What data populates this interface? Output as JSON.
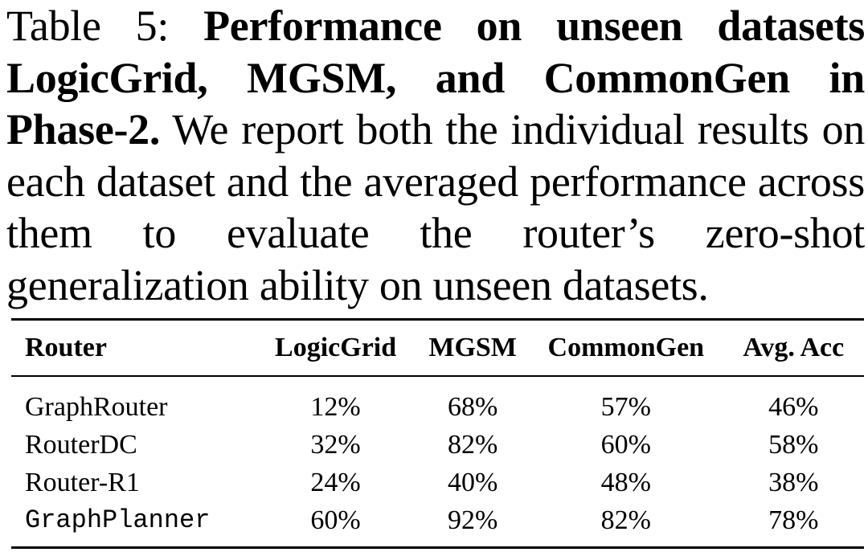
{
  "caption": {
    "label": "Table 5:",
    "title": "Performance on unseen datasets LogicGrid, MGSM, and CommonGen in Phase-2.",
    "text": "We report both the individual results on each dataset and the averaged performance across them to evaluate the router’s zero-shot generalization ability on unseen datasets."
  },
  "table": {
    "headers": [
      "Router",
      "LogicGrid",
      "MGSM",
      "CommonGen",
      "Avg. Acc"
    ],
    "rows": [
      {
        "router": "GraphRouter",
        "logicgrid": "12%",
        "mgsm": "68%",
        "commongen": "57%",
        "avg": "46%"
      },
      {
        "router": "RouterDC",
        "logicgrid": "32%",
        "mgsm": "82%",
        "commongen": "60%",
        "avg": "58%"
      },
      {
        "router": "Router-R1",
        "logicgrid": "24%",
        "mgsm": "40%",
        "commongen": "48%",
        "avg": "38%"
      },
      {
        "router": "GraphPlanner",
        "logicgrid": "60%",
        "mgsm": "92%",
        "commongen": "82%",
        "avg": "78%"
      }
    ]
  }
}
